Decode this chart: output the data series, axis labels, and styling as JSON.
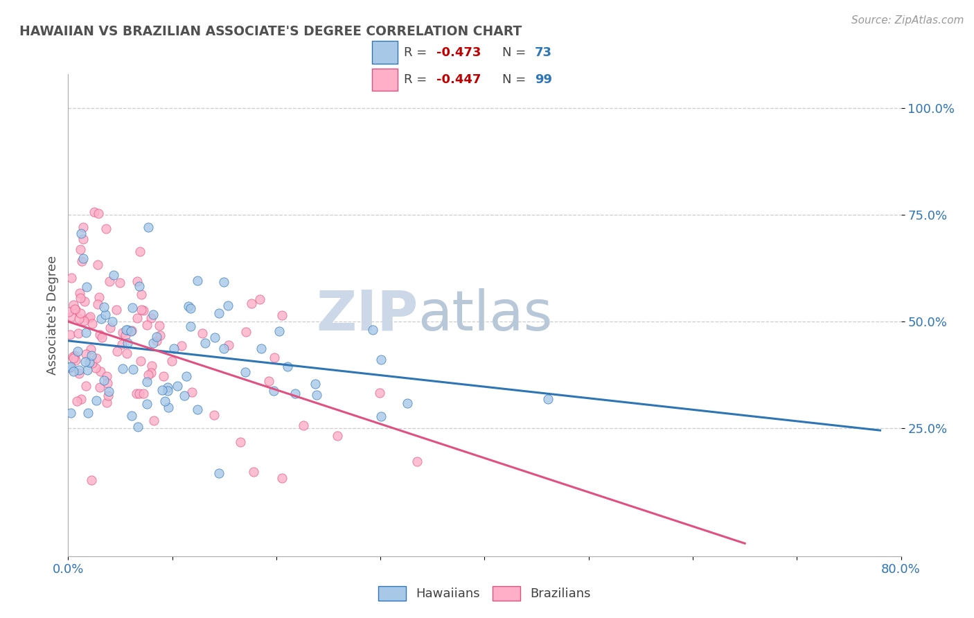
{
  "title": "HAWAIIAN VS BRAZILIAN ASSOCIATE'S DEGREE CORRELATION CHART",
  "source": "Source: ZipAtlas.com",
  "ylabel": "Associate's Degree",
  "xlim": [
    0.0,
    0.8
  ],
  "ylim": [
    -0.05,
    1.08
  ],
  "xticks": [
    0.0,
    0.1,
    0.2,
    0.3,
    0.4,
    0.5,
    0.6,
    0.7,
    0.8
  ],
  "xticklabels": [
    "0.0%",
    "",
    "",
    "",
    "",
    "",
    "",
    "",
    "80.0%"
  ],
  "ytick_positions": [
    0.25,
    0.5,
    0.75,
    1.0
  ],
  "ytick_labels": [
    "25.0%",
    "50.0%",
    "75.0%",
    "100.0%"
  ],
  "hawaiian_R": -0.473,
  "hawaiian_N": 73,
  "brazilian_R": -0.447,
  "brazilian_N": 99,
  "hawaiian_color": "#a8c8e8",
  "brazilian_color": "#ffb0c8",
  "hawaiian_line_color": "#2e75b6",
  "brazilian_line_color": "#e05080",
  "watermark_zip": "ZIP",
  "watermark_atlas": "atlas",
  "watermark_color": "#ccd8e8",
  "background_color": "#ffffff",
  "grid_color": "#c8c8c8",
  "title_color": "#505050",
  "legend_r_color": "#c00000",
  "legend_n_color": "#2e75b6",
  "tick_color": "#2e75b6",
  "seed": 12345,
  "haw_line_x0": 0.0,
  "haw_line_y0": 0.455,
  "haw_line_x1": 0.78,
  "haw_line_y1": 0.245,
  "braz_line_x0": 0.0,
  "braz_line_y0": 0.5,
  "braz_line_x1": 0.65,
  "braz_line_y1": -0.02
}
